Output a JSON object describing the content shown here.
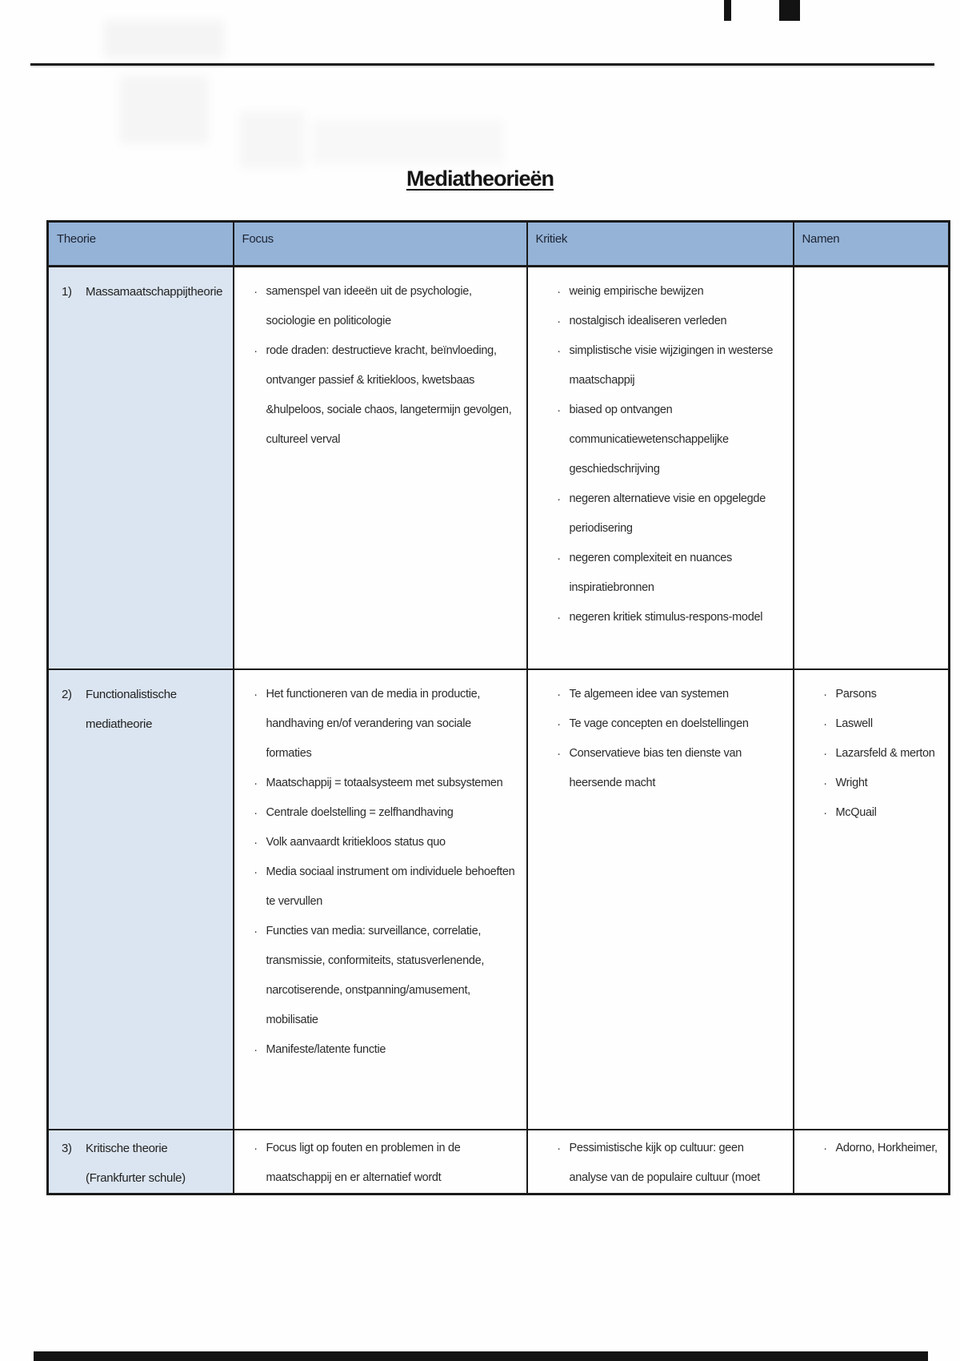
{
  "page": {
    "title": "Mediatheorieën"
  },
  "colors": {
    "header_bg": "#95b3d7",
    "theorie_column_bg": "#dbe5f1",
    "border": "#1a1a1a"
  },
  "table": {
    "bullet_char": "·",
    "headers": [
      "Theorie",
      "Focus",
      "Kritiek",
      "Namen"
    ],
    "rows": [
      {
        "num": "1)",
        "theorie": "Massamaatschappijtheorie",
        "focus": [
          "samenspel van ideeën uit de psychologie, sociologie en politicologie",
          "rode draden: destructieve kracht, beïnvloeding, ontvanger passief & kritiekloos, kwetsbaas &hulpeloos, sociale chaos, langetermijn gevolgen, cultureel verval"
        ],
        "kritiek": [
          "weinig empirische bewijzen",
          "nostalgisch idealiseren verleden",
          "simplistische visie wijzigingen in westerse maatschappij",
          "biased op ontvangen communicatiewetenschappelijke geschiedschrijving",
          "negeren alternatieve visie en opgelegde periodisering",
          "negeren complexiteit en nuances inspiratiebronnen",
          "negeren kritiek stimulus-respons-model"
        ],
        "namen": []
      },
      {
        "num": "2)",
        "theorie": "Functionalistische mediatheorie",
        "focus": [
          "Het functioneren van de media in productie, handhaving en/of verandering van sociale formaties",
          "Maatschappij = totaalsysteem met subsystemen",
          "Centrale doelstelling = zelfhandhaving",
          "Volk aanvaardt kritiekloos status quo",
          "Media sociaal instrument om individuele behoeften te vervullen",
          "Functies van media: surveillance, correlatie, transmissie, conformiteits, statusverlenende, narcotiserende, onstpanning/amusement, mobilisatie",
          "Manifeste/latente functie"
        ],
        "kritiek": [
          "Te algemeen idee van systemen",
          "Te vage concepten en doelstellingen",
          "Conservatieve bias ten dienste van heersende macht"
        ],
        "namen": [
          "Parsons",
          "Laswell",
          "Lazarsfeld & merton",
          "Wright",
          "McQuail"
        ]
      },
      {
        "num": "3)",
        "theorie": "Kritische theorie (Frankfurter schule)",
        "focus": [
          "Focus ligt op fouten en problemen in de maatschappij en er alternatief wordt"
        ],
        "kritiek": [
          "Pessimistische kijk op cultuur: geen analyse van de populaire cultuur (moet"
        ],
        "namen": [
          "Adorno, Horkheimer,"
        ]
      }
    ]
  }
}
